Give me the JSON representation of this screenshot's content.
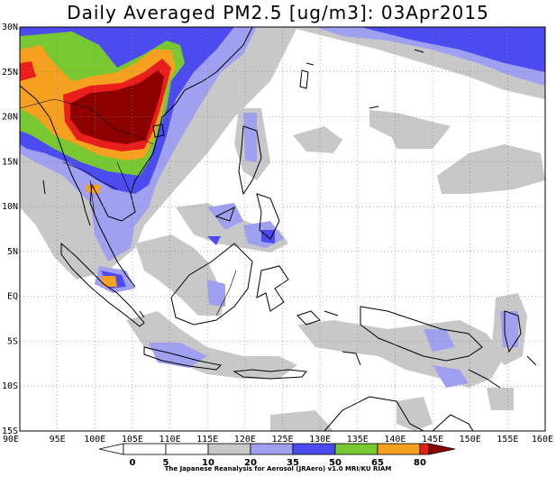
{
  "title": "Daily Averaged PM2.5 [ug/m3]: 03Apr2015",
  "lat_labels": [
    "30N",
    "25N",
    "20N",
    "15N",
    "10N",
    "5N",
    "EQ",
    "5S",
    "10S",
    "15S"
  ],
  "lon_labels": [
    "90E",
    "95E",
    "100E",
    "105E",
    "110E",
    "115E",
    "120E",
    "125E",
    "130E",
    "135E",
    "140E",
    "145E",
    "150E",
    "155E",
    "160E"
  ],
  "colorbar": {
    "ticks": [
      "0",
      "5",
      "10",
      "20",
      "35",
      "50",
      "65",
      "80"
    ],
    "colors": [
      "#ffffff",
      "#ffffff",
      "#c8c8c8",
      "#a0a0f0",
      "#4b4bf0",
      "#78c832",
      "#f5a01e",
      "#eb1e1e",
      "#8c0000"
    ]
  },
  "credit": "The Japanese Reanalysis for Aerosol (JRAero) v1.0 MRI/KU RIAM"
}
